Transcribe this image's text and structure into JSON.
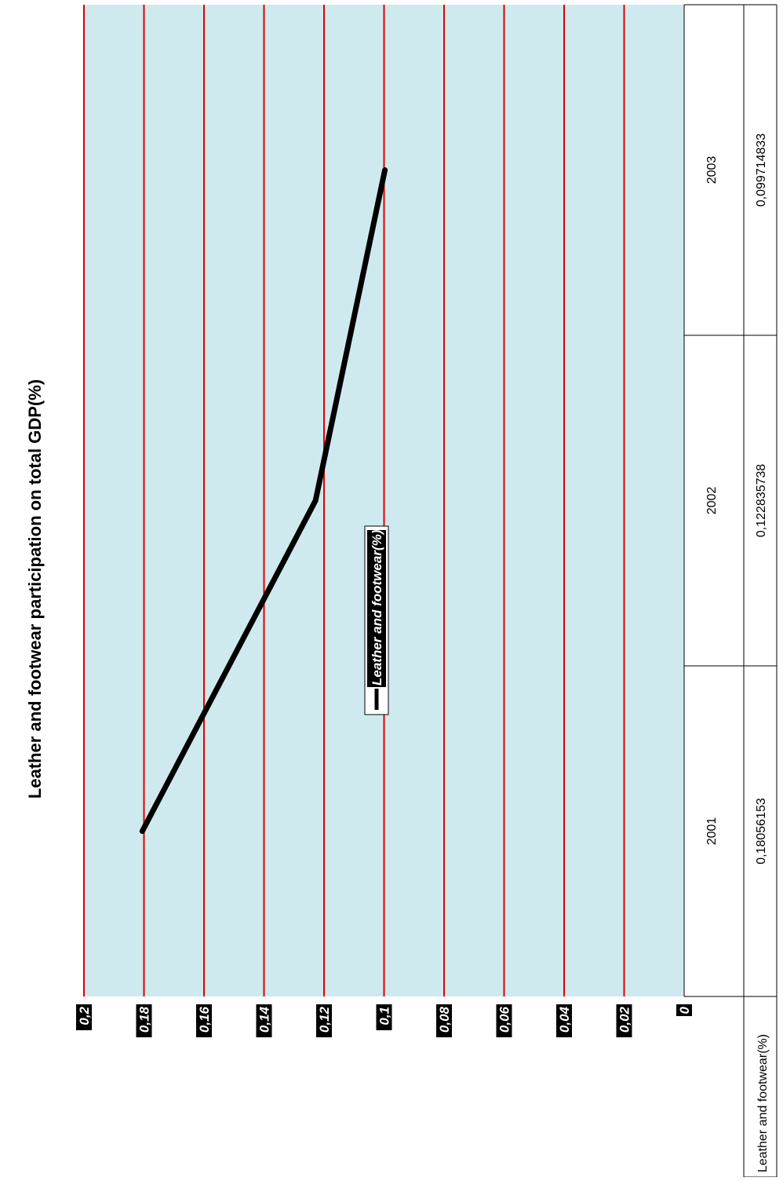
{
  "chart_data": {
    "type": "line",
    "title": "Leather and footwear participation on total GDP(%)",
    "categories": [
      "2001",
      "2002",
      "2003"
    ],
    "series": [
      {
        "name": "Leather and footwear(%)",
        "values": [
          0.18056153,
          0.122835738,
          0.099714833
        ],
        "color": "#000000"
      }
    ],
    "data_table": {
      "row_label": "Leather and footwear(%)",
      "values": [
        "0,18056153",
        "0,122835738",
        "0,099714833"
      ]
    },
    "ylim": [
      0,
      0.2
    ],
    "yticks": [
      {
        "value": 0,
        "label": "0"
      },
      {
        "value": 0.02,
        "label": "0,02"
      },
      {
        "value": 0.04,
        "label": "0,04"
      },
      {
        "value": 0.06,
        "label": "0,06"
      },
      {
        "value": 0.08,
        "label": "0,08"
      },
      {
        "value": 0.1,
        "label": "0,1"
      },
      {
        "value": 0.12,
        "label": "0,12"
      },
      {
        "value": 0.14,
        "label": "0,14"
      },
      {
        "value": 0.16,
        "label": "0,16"
      },
      {
        "value": 0.18,
        "label": "0,18"
      },
      {
        "value": 0.2,
        "label": "0,2"
      }
    ],
    "legend": {
      "label": "Leather and footwear(%)",
      "position": "bottom"
    },
    "grid": true,
    "orientation": "rotated 90° counter-clockwise",
    "colors": {
      "plot_background": "#cfeaee",
      "gridline": "#dd0000",
      "tick_label_background": "#000000",
      "tick_label_text": "#ffffff",
      "line": "#000000"
    }
  }
}
